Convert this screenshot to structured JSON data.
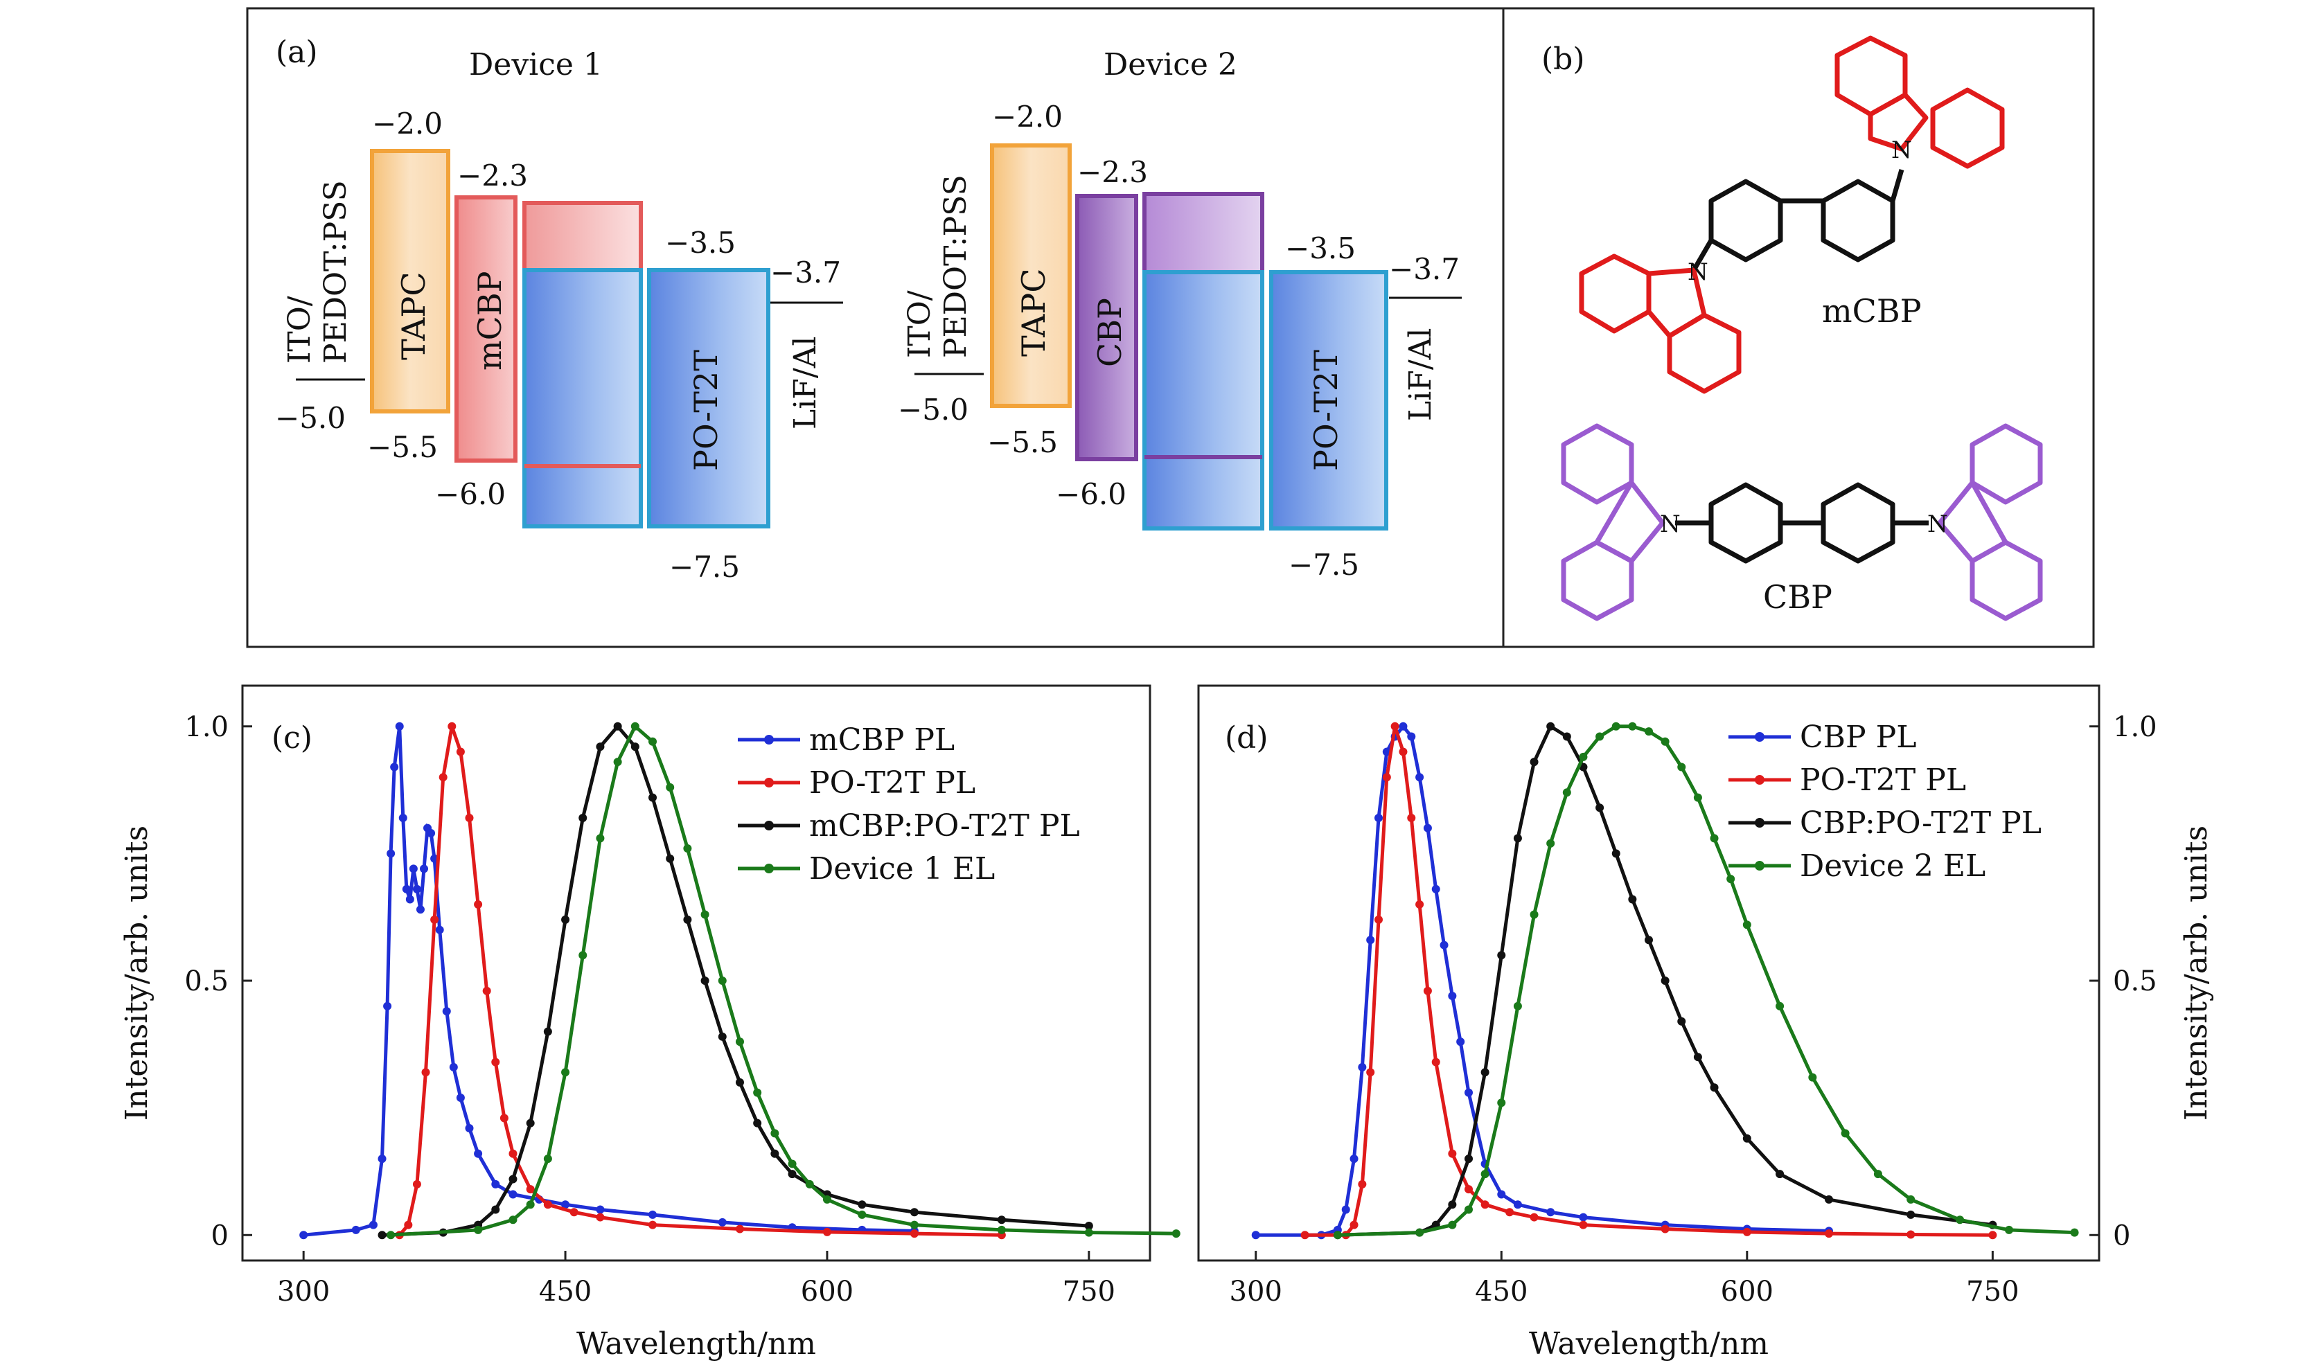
{
  "panel_a": {
    "tag": "(a)",
    "devices": [
      {
        "title": "Device 1",
        "anode": "ITO/\nPEDOT:PSS",
        "anode_level": "−5.0",
        "layers": [
          {
            "name": "TAPC",
            "color": "#f2a33a",
            "lumo": -2.0,
            "homo": -5.5,
            "lumo_label": "−2.0",
            "homo_label": "−5.5"
          },
          {
            "name": "mCBP",
            "color": "#e35a5a",
            "lumo": -2.3,
            "homo": -6.0,
            "lumo_label": "−2.3",
            "homo_label": "−6.0"
          },
          {
            "name": "",
            "color": "#e35a5a",
            "role": "host-overlay"
          },
          {
            "name": "PO-T2T",
            "color": "#2e9fd0",
            "lumo": -3.5,
            "homo": -7.5,
            "lumo_label": "−3.5",
            "homo_label": "−7.5"
          }
        ],
        "cathode": "LiF/Al",
        "cathode_level": "−3.7"
      },
      {
        "title": "Device 2",
        "anode": "ITO/\nPEDOT:PSS",
        "anode_level": "−5.0",
        "layers": [
          {
            "name": "TAPC",
            "color": "#f2a33a",
            "lumo": -2.0,
            "homo": -5.5,
            "lumo_label": "−2.0",
            "homo_label": "−5.5"
          },
          {
            "name": "CBP",
            "color": "#7a3fa0",
            "lumo": -2.3,
            "homo": -6.0,
            "lumo_label": "−2.3",
            "homo_label": "−6.0"
          },
          {
            "name": "",
            "color": "#7a3fa0",
            "role": "host-overlay"
          },
          {
            "name": "PO-T2T",
            "color": "#2e9fd0",
            "lumo": -3.5,
            "homo": -7.5,
            "lumo_label": "−3.5",
            "homo_label": "−7.5"
          }
        ],
        "cathode": "LiF/Al",
        "cathode_level": "−3.7"
      }
    ]
  },
  "panel_b": {
    "tag": "(b)",
    "molecules": [
      {
        "name": "mCBP",
        "color": "#e01b1b"
      },
      {
        "name": "CBP",
        "color": "#9a5bd0"
      }
    ],
    "atom_label": "N"
  },
  "chart_data": [
    {
      "type": "line",
      "panel": "(c)",
      "xlabel": "Wavelength/nm",
      "ylabel": "Intensity/arb. units",
      "xlim": [
        265,
        785
      ],
      "ylim": [
        -0.05,
        1.08
      ],
      "xticks": [
        300,
        450,
        600,
        750
      ],
      "yticks": [
        0,
        0.5,
        1.0
      ],
      "ytick_labels": [
        "0",
        "0.5",
        "1.0"
      ],
      "yaxis_side": "left",
      "legend_position": "top-right",
      "series": [
        {
          "name": "mCBP PL",
          "color": "#1f2fd6",
          "x": [
            300,
            330,
            340,
            345,
            348,
            350,
            352,
            355,
            357,
            359,
            361,
            363,
            365,
            367,
            369,
            371,
            373,
            375,
            378,
            382,
            386,
            390,
            395,
            400,
            410,
            420,
            435,
            450,
            470,
            500,
            540,
            580,
            620,
            650
          ],
          "y": [
            0,
            0.01,
            0.02,
            0.15,
            0.45,
            0.75,
            0.92,
            1.0,
            0.82,
            0.68,
            0.66,
            0.72,
            0.68,
            0.64,
            0.72,
            0.8,
            0.79,
            0.74,
            0.6,
            0.44,
            0.33,
            0.27,
            0.21,
            0.16,
            0.1,
            0.08,
            0.07,
            0.06,
            0.05,
            0.04,
            0.025,
            0.015,
            0.01,
            0.008
          ]
        },
        {
          "name": "PO-T2T PL",
          "color": "#e01b1b",
          "x": [
            355,
            360,
            365,
            370,
            375,
            380,
            385,
            390,
            395,
            400,
            405,
            410,
            415,
            420,
            430,
            440,
            455,
            470,
            500,
            550,
            600,
            650,
            700
          ],
          "y": [
            0.0,
            0.02,
            0.1,
            0.32,
            0.62,
            0.9,
            1.0,
            0.95,
            0.82,
            0.65,
            0.48,
            0.34,
            0.23,
            0.16,
            0.09,
            0.06,
            0.045,
            0.035,
            0.02,
            0.012,
            0.006,
            0.003,
            0.0
          ]
        },
        {
          "name": "mCBP:PO-T2T PL",
          "color": "#111111",
          "x": [
            345,
            380,
            400,
            410,
            420,
            430,
            440,
            450,
            460,
            470,
            480,
            490,
            500,
            510,
            520,
            530,
            540,
            550,
            560,
            570,
            580,
            600,
            620,
            650,
            700,
            750
          ],
          "y": [
            0.0,
            0.005,
            0.02,
            0.05,
            0.11,
            0.22,
            0.4,
            0.62,
            0.82,
            0.96,
            1.0,
            0.96,
            0.86,
            0.74,
            0.62,
            0.5,
            0.39,
            0.3,
            0.22,
            0.16,
            0.12,
            0.08,
            0.06,
            0.045,
            0.03,
            0.018
          ]
        },
        {
          "name": "Device 1 EL",
          "color": "#1a7a1a",
          "x": [
            350,
            400,
            420,
            430,
            440,
            450,
            460,
            470,
            480,
            490,
            500,
            510,
            520,
            530,
            540,
            550,
            560,
            570,
            580,
            590,
            600,
            620,
            650,
            700,
            750,
            800
          ],
          "y": [
            0.0,
            0.01,
            0.03,
            0.06,
            0.15,
            0.32,
            0.55,
            0.78,
            0.93,
            1.0,
            0.97,
            0.88,
            0.76,
            0.63,
            0.5,
            0.38,
            0.28,
            0.2,
            0.14,
            0.1,
            0.07,
            0.04,
            0.02,
            0.01,
            0.005,
            0.003
          ]
        }
      ]
    },
    {
      "type": "line",
      "panel": "(d)",
      "xlabel": "Wavelength/nm",
      "ylabel": "Intensity/arb. units",
      "xlim": [
        265,
        815
      ],
      "ylim": [
        -0.05,
        1.08
      ],
      "xticks": [
        300,
        450,
        600,
        750
      ],
      "yticks": [
        0,
        0.5,
        1.0
      ],
      "ytick_labels": [
        "0",
        "0.5",
        "1.0"
      ],
      "yaxis_side": "right",
      "legend_position": "top-right",
      "series": [
        {
          "name": "CBP PL",
          "color": "#1f2fd6",
          "x": [
            300,
            340,
            350,
            355,
            360,
            365,
            370,
            375,
            380,
            385,
            390,
            395,
            400,
            405,
            410,
            415,
            420,
            425,
            430,
            440,
            450,
            460,
            480,
            500,
            550,
            600,
            650
          ],
          "y": [
            0,
            0.0,
            0.01,
            0.05,
            0.15,
            0.33,
            0.58,
            0.82,
            0.95,
            0.98,
            1.0,
            0.98,
            0.9,
            0.8,
            0.68,
            0.57,
            0.47,
            0.38,
            0.28,
            0.14,
            0.08,
            0.06,
            0.045,
            0.035,
            0.02,
            0.012,
            0.008
          ]
        },
        {
          "name": "PO-T2T PL",
          "color": "#e01b1b",
          "x": [
            330,
            355,
            360,
            365,
            370,
            375,
            380,
            385,
            390,
            395,
            400,
            405,
            410,
            420,
            430,
            440,
            455,
            470,
            500,
            550,
            600,
            650,
            700,
            750
          ],
          "y": [
            0,
            0.0,
            0.02,
            0.1,
            0.32,
            0.62,
            0.9,
            1.0,
            0.95,
            0.82,
            0.65,
            0.48,
            0.34,
            0.16,
            0.09,
            0.06,
            0.045,
            0.035,
            0.02,
            0.012,
            0.006,
            0.003,
            0.001,
            0.0
          ]
        },
        {
          "name": "CBP:PO-T2T PL",
          "color": "#111111",
          "x": [
            350,
            400,
            410,
            420,
            430,
            440,
            450,
            460,
            470,
            480,
            490,
            500,
            510,
            520,
            530,
            540,
            550,
            560,
            570,
            580,
            600,
            620,
            650,
            700,
            750
          ],
          "y": [
            0.0,
            0.005,
            0.02,
            0.06,
            0.15,
            0.32,
            0.55,
            0.78,
            0.93,
            1.0,
            0.98,
            0.92,
            0.84,
            0.75,
            0.66,
            0.58,
            0.5,
            0.42,
            0.35,
            0.29,
            0.19,
            0.12,
            0.07,
            0.04,
            0.02
          ]
        },
        {
          "name": "Device 2 EL",
          "color": "#1a7a1a",
          "x": [
            350,
            400,
            420,
            430,
            440,
            450,
            460,
            470,
            480,
            490,
            500,
            510,
            520,
            530,
            540,
            550,
            560,
            570,
            580,
            590,
            600,
            620,
            640,
            660,
            680,
            700,
            730,
            760,
            800
          ],
          "y": [
            0.0,
            0.005,
            0.02,
            0.05,
            0.12,
            0.26,
            0.45,
            0.63,
            0.77,
            0.87,
            0.94,
            0.98,
            1.0,
            1.0,
            0.99,
            0.97,
            0.92,
            0.86,
            0.78,
            0.7,
            0.61,
            0.45,
            0.31,
            0.2,
            0.12,
            0.07,
            0.03,
            0.01,
            0.005
          ]
        }
      ]
    }
  ]
}
